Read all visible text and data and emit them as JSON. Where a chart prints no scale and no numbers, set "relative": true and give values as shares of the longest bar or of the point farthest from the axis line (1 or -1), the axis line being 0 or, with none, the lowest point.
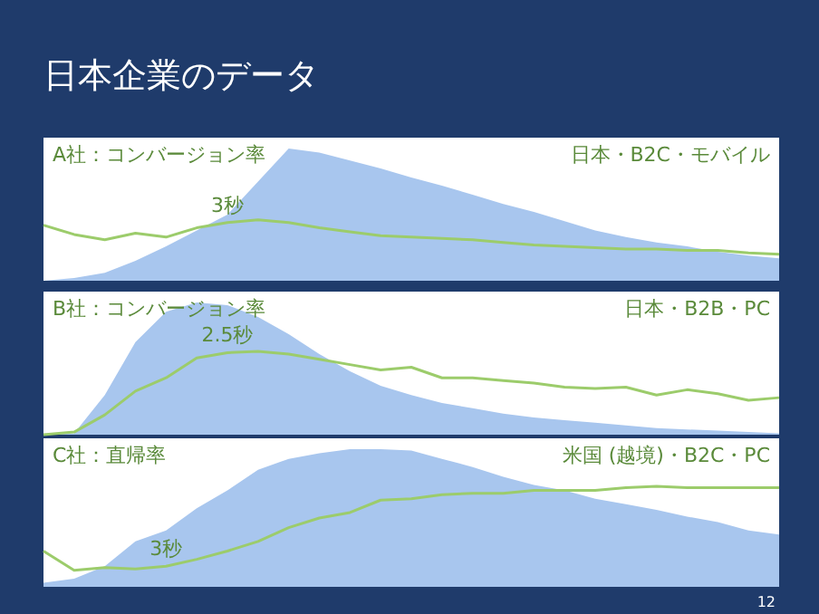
{
  "chart_data": [
    {
      "type": "area",
      "relative": true,
      "title": "A社：コンバージョン率",
      "subtitle": "日本・B2C・モバイル",
      "categories": [
        null,
        null,
        null,
        null,
        null,
        null,
        null,
        null,
        null,
        null,
        null,
        null,
        null,
        null,
        null,
        null,
        null,
        null,
        null,
        null,
        null,
        null,
        null,
        null,
        null
      ],
      "series": [
        {
          "type": "area",
          "color": "#a8c6ee",
          "values": [
            0,
            0.02,
            0.06,
            0.15,
            0.26,
            0.38,
            0.5,
            0.75,
            1,
            0.97,
            0.91,
            0.85,
            0.78,
            0.72,
            0.65,
            0.58,
            0.52,
            0.45,
            0.38,
            0.33,
            0.29,
            0.26,
            0.22,
            0.19,
            0.17
          ]
        },
        {
          "type": "line",
          "color": "#9ccc6b",
          "values": [
            0.42,
            0.35,
            0.31,
            0.36,
            0.33,
            0.4,
            0.44,
            0.46,
            0.44,
            0.4,
            0.37,
            0.34,
            0.33,
            0.32,
            0.31,
            0.29,
            0.27,
            0.26,
            0.25,
            0.24,
            0.24,
            0.23,
            0.23,
            0.21,
            0.2
          ]
        }
      ],
      "annotations": [
        "日本企業のデータ",
        {
          "text": "3秒",
          "y": 0.44
        }
      ]
    },
    {
      "type": "area",
      "relative": true,
      "title": "B社：コンバージョン率",
      "subtitle": "日本・B2B・PC",
      "categories": [
        null,
        null,
        null,
        null,
        null,
        null,
        null,
        null,
        null,
        null,
        null,
        null,
        null,
        null,
        null,
        null,
        null,
        null,
        null,
        null,
        null,
        null,
        null,
        null,
        null
      ],
      "series": [
        {
          "type": "area",
          "color": "#a8c6ee",
          "values": [
            0,
            0.01,
            0.3,
            0.7,
            0.93,
            1,
            0.98,
            0.89,
            0.76,
            0.61,
            0.48,
            0.37,
            0.3,
            0.24,
            0.2,
            0.16,
            0.13,
            0.11,
            0.09,
            0.07,
            0.05,
            0.04,
            0.03,
            0.02,
            0.01
          ]
        },
        {
          "type": "line",
          "color": "#9ccc6b",
          "values": [
            0,
            0.02,
            0.15,
            0.33,
            0.43,
            0.58,
            0.62,
            0.63,
            0.61,
            0.57,
            0.53,
            0.49,
            0.51,
            0.43,
            0.43,
            0.41,
            0.39,
            0.36,
            0.35,
            0.36,
            0.3,
            0.34,
            0.31,
            0.26,
            0.28
          ]
        }
      ],
      "annotations": [
        {
          "text": "2.5秒",
          "y": 0.62
        }
      ]
    },
    {
      "type": "area",
      "relative": true,
      "title": "C社：直帰率",
      "subtitle": "米国 (越境)・B2C・PC",
      "categories": [
        null,
        null,
        null,
        null,
        null,
        null,
        null,
        null,
        null,
        null,
        null,
        null,
        null,
        null,
        null,
        null,
        null,
        null,
        null,
        null,
        null,
        null,
        null,
        null,
        null
      ],
      "series": [
        {
          "type": "area",
          "color": "#a8c6ee",
          "values": [
            0.03,
            0.06,
            0.15,
            0.33,
            0.41,
            0.57,
            0.7,
            0.85,
            0.93,
            0.97,
            1,
            1,
            0.99,
            0.93,
            0.87,
            0.8,
            0.74,
            0.7,
            0.64,
            0.6,
            0.56,
            0.51,
            0.47,
            0.41,
            0.38
          ]
        },
        {
          "type": "line",
          "color": "#9ccc6b",
          "values": [
            0.26,
            0.12,
            0.14,
            0.13,
            0.15,
            0.2,
            0.26,
            0.33,
            0.43,
            0.5,
            0.54,
            0.63,
            0.64,
            0.67,
            0.68,
            0.68,
            0.7,
            0.7,
            0.7,
            0.72,
            0.73,
            0.72,
            0.72,
            0.72,
            0.72
          ]
        }
      ],
      "annotations": [
        {
          "text": "3秒",
          "y": 0.15
        },
        "12"
      ]
    }
  ]
}
